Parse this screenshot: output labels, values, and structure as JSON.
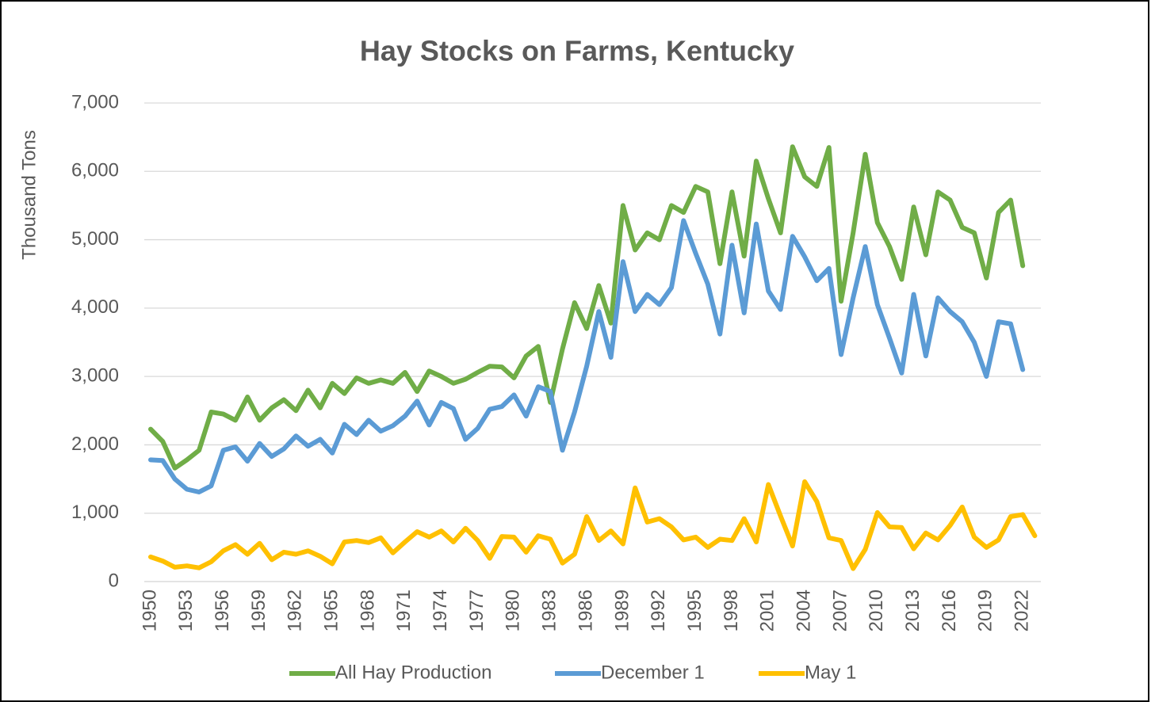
{
  "chart_data": {
    "type": "line",
    "title": "Hay Stocks on Farms, Kentucky",
    "y_label": "Thousand Tons",
    "categories": [
      "1950",
      null,
      null,
      "1953",
      null,
      null,
      "1956",
      null,
      null,
      "1959",
      null,
      null,
      "1962",
      null,
      null,
      "1965",
      null,
      null,
      "1968",
      null,
      null,
      "1971",
      null,
      null,
      "1974",
      null,
      null,
      "1977",
      null,
      null,
      "1980",
      null,
      null,
      "1983",
      null,
      null,
      "1986",
      null,
      null,
      "1989",
      null,
      null,
      "1992",
      null,
      null,
      "1995",
      null,
      null,
      "1998",
      null,
      null,
      "2001",
      null,
      null,
      "2004",
      null,
      null,
      "2007",
      null,
      null,
      "2010",
      null,
      null,
      "2013",
      null,
      null,
      "2016",
      null,
      null,
      "2019",
      null,
      null,
      "2022",
      null
    ],
    "series": [
      {
        "name": "All Hay Production",
        "color": "#70ad47",
        "values": [
          2230,
          2050,
          1660,
          1780,
          1920,
          2480,
          2450,
          2360,
          2700,
          2360,
          2540,
          2660,
          2500,
          2800,
          2540,
          2900,
          2750,
          2980,
          2900,
          2950,
          2900,
          3060,
          2780,
          3080,
          3000,
          2900,
          2960,
          3060,
          3150,
          3140,
          2980,
          3300,
          3440,
          2620,
          3400,
          4080,
          3700,
          4330,
          3780,
          5500,
          4850,
          5100,
          5000,
          5500,
          5400,
          5780,
          5700,
          4650,
          5700,
          4760,
          6150,
          5600,
          5100,
          6360,
          5920,
          5780,
          6350,
          4100,
          5100,
          6250,
          5250,
          4900,
          4420,
          5480,
          4780,
          5700,
          5580,
          5180,
          5100,
          4440,
          5400,
          5580,
          4620,
          null
        ]
      },
      {
        "name": "December 1",
        "color": "#5b9bd5",
        "values": [
          1780,
          1770,
          1500,
          1350,
          1310,
          1400,
          1920,
          1970,
          1760,
          2020,
          1830,
          1940,
          2130,
          1980,
          2080,
          1880,
          2300,
          2150,
          2360,
          2200,
          2280,
          2420,
          2640,
          2290,
          2620,
          2530,
          2080,
          2240,
          2520,
          2560,
          2730,
          2420,
          2850,
          2780,
          1920,
          2480,
          3150,
          3950,
          3280,
          4680,
          3950,
          4200,
          4050,
          4300,
          5280,
          4800,
          4350,
          3620,
          4920,
          3930,
          5230,
          4250,
          3980,
          5050,
          4750,
          4400,
          4580,
          3320,
          4150,
          4900,
          4050,
          3560,
          3050,
          4200,
          3300,
          4150,
          3950,
          3800,
          3500,
          3000,
          3800,
          3770,
          3100,
          null
        ]
      },
      {
        "name": "May 1",
        "color": "#ffc000",
        "values": [
          360,
          300,
          210,
          230,
          200,
          290,
          450,
          540,
          400,
          560,
          320,
          430,
          400,
          450,
          370,
          260,
          580,
          600,
          570,
          640,
          420,
          580,
          730,
          650,
          740,
          580,
          780,
          600,
          340,
          660,
          650,
          430,
          670,
          620,
          270,
          400,
          950,
          600,
          740,
          550,
          1370,
          870,
          920,
          800,
          610,
          650,
          500,
          620,
          600,
          920,
          580,
          1420,
          960,
          520,
          1460,
          1170,
          640,
          600,
          190,
          470,
          1010,
          800,
          790,
          480,
          710,
          610,
          820,
          1090,
          650,
          500,
          610,
          950,
          980,
          670
        ]
      }
    ],
    "ylim": [
      0,
      7000
    ],
    "yticks": [
      0,
      {
        "value": 1000,
        "label": "1,000"
      },
      {
        "value": 2000,
        "label": "2,000"
      },
      {
        "value": 3000,
        "label": "3,000"
      },
      {
        "value": 4000,
        "label": "4,000"
      },
      {
        "value": 5000,
        "label": "5,000"
      },
      {
        "value": 6000,
        "label": "6,000"
      },
      {
        "value": 7000,
        "label": "7,000"
      }
    ],
    "grid": true,
    "legend": "bottom"
  }
}
